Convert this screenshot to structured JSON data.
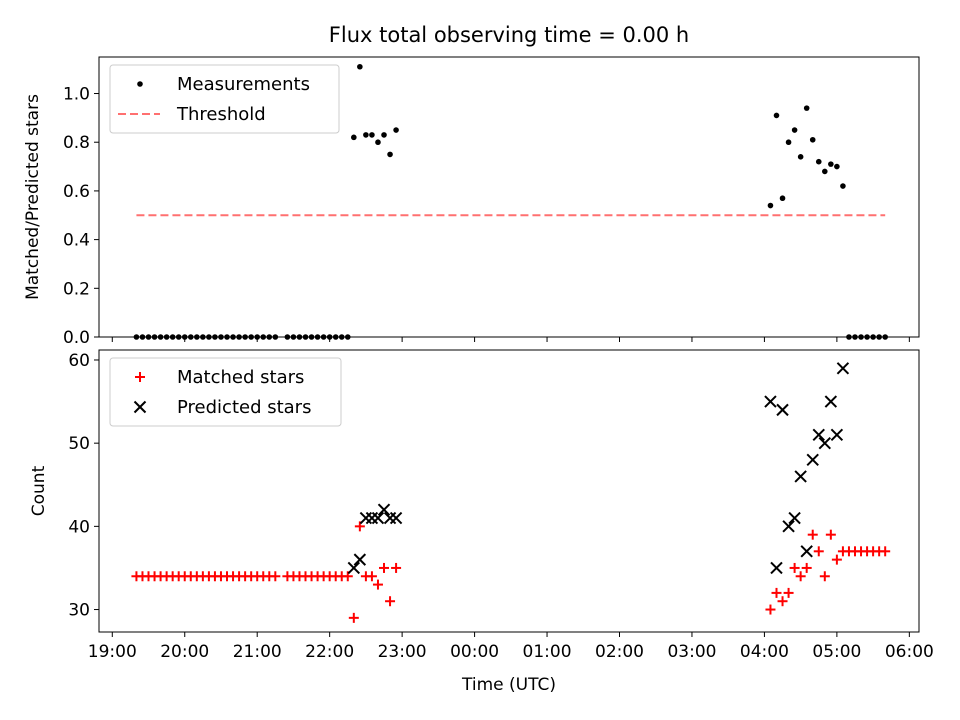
{
  "figure": {
    "title": "Flux total observing time = 0.00 h"
  },
  "chart_data": [
    {
      "type": "scatter",
      "panel": "top",
      "title": "Flux total observing time = 0.00 h",
      "xlabel": "",
      "ylabel": "Matched/Predicted stars",
      "x_ticks": [
        "19:00",
        "20:00",
        "21:00",
        "22:00",
        "23:00",
        "00:00",
        "01:00",
        "02:00",
        "03:00",
        "04:00",
        "05:00",
        "06:00"
      ],
      "ylim": [
        0,
        1.15
      ],
      "y_ticks": [
        "0.0",
        "0.2",
        "0.4",
        "0.6",
        "0.8",
        "1.0"
      ],
      "legend": [
        "Measurements",
        "Threshold"
      ],
      "legend_position": "top-left",
      "colors": {
        "measurements": "#000000",
        "threshold": "#ff7070"
      },
      "series": [
        {
          "name": "Measurements",
          "x": [
            "19:20",
            "19:25",
            "19:30",
            "19:35",
            "19:40",
            "19:45",
            "19:50",
            "19:55",
            "20:00",
            "20:05",
            "20:10",
            "20:15",
            "20:20",
            "20:25",
            "20:30",
            "20:35",
            "20:40",
            "20:45",
            "20:50",
            "20:55",
            "21:00",
            "21:05",
            "21:10",
            "21:15",
            "21:25",
            "21:30",
            "21:35",
            "21:40",
            "21:45",
            "21:50",
            "21:55",
            "22:00",
            "22:05",
            "22:10",
            "22:15",
            "22:20",
            "22:25",
            "22:30",
            "22:35",
            "22:40",
            "22:45",
            "22:50",
            "22:55",
            "04:05",
            "04:10",
            "04:15",
            "04:20",
            "04:25",
            "04:30",
            "04:35",
            "04:40",
            "04:45",
            "04:50",
            "04:55",
            "05:00",
            "05:05",
            "05:10",
            "05:15",
            "05:20",
            "05:25",
            "05:30",
            "05:35",
            "05:40"
          ],
          "y": [
            0,
            0,
            0,
            0,
            0,
            0,
            0,
            0,
            0,
            0,
            0,
            0,
            0,
            0,
            0,
            0,
            0,
            0,
            0,
            0,
            0,
            0,
            0,
            0,
            0,
            0,
            0,
            0,
            0,
            0,
            0,
            0,
            0,
            0,
            0,
            0.82,
            1.11,
            0.83,
            0.83,
            0.8,
            0.83,
            0.75,
            0.85,
            0.54,
            0.91,
            0.57,
            0.8,
            0.85,
            0.74,
            0.94,
            0.81,
            0.72,
            0.68,
            0.71,
            0.7,
            0.62,
            0,
            0,
            0,
            0,
            0,
            0,
            0
          ]
        },
        {
          "name": "Threshold",
          "x": [
            "19:20",
            "05:40"
          ],
          "y": [
            0.5,
            0.5
          ]
        }
      ]
    },
    {
      "type": "scatter",
      "panel": "bottom",
      "xlabel": "Time (UTC)",
      "ylabel": "Count",
      "x_ticks": [
        "19:00",
        "20:00",
        "21:00",
        "22:00",
        "23:00",
        "00:00",
        "01:00",
        "02:00",
        "03:00",
        "04:00",
        "05:00",
        "06:00"
      ],
      "ylim": [
        27.3,
        61.2
      ],
      "y_ticks": [
        "30",
        "40",
        "50",
        "60"
      ],
      "legend": [
        "Matched stars",
        "Predicted stars"
      ],
      "legend_position": "top-left",
      "colors": {
        "matched": "#ff0000",
        "predicted": "#000000"
      },
      "series": [
        {
          "name": "Matched stars",
          "marker": "+",
          "x": [
            "19:20",
            "19:25",
            "19:30",
            "19:35",
            "19:40",
            "19:45",
            "19:50",
            "19:55",
            "20:00",
            "20:05",
            "20:10",
            "20:15",
            "20:20",
            "20:25",
            "20:30",
            "20:35",
            "20:40",
            "20:45",
            "20:50",
            "20:55",
            "21:00",
            "21:05",
            "21:10",
            "21:15",
            "21:25",
            "21:30",
            "21:35",
            "21:40",
            "21:45",
            "21:50",
            "21:55",
            "22:00",
            "22:05",
            "22:10",
            "22:15",
            "22:20",
            "22:25",
            "22:30",
            "22:35",
            "22:40",
            "22:45",
            "22:50",
            "22:55",
            "04:05",
            "04:10",
            "04:15",
            "04:20",
            "04:25",
            "04:30",
            "04:35",
            "04:40",
            "04:45",
            "04:50",
            "04:55",
            "05:00",
            "05:05",
            "05:10",
            "05:15",
            "05:20",
            "05:25",
            "05:30",
            "05:35",
            "05:40"
          ],
          "y": [
            34,
            34,
            34,
            34,
            34,
            34,
            34,
            34,
            34,
            34,
            34,
            34,
            34,
            34,
            34,
            34,
            34,
            34,
            34,
            34,
            34,
            34,
            34,
            34,
            34,
            34,
            34,
            34,
            34,
            34,
            34,
            34,
            34,
            34,
            34,
            29,
            40,
            34,
            34,
            33,
            35,
            31,
            35,
            30,
            32,
            31,
            32,
            35,
            34,
            35,
            39,
            37,
            34,
            39,
            36,
            37,
            37,
            37,
            37,
            37,
            37,
            37,
            37
          ]
        },
        {
          "name": "Predicted stars",
          "marker": "x",
          "x": [
            "22:20",
            "22:25",
            "22:30",
            "22:35",
            "22:40",
            "22:45",
            "22:50",
            "22:55",
            "04:05",
            "04:10",
            "04:15",
            "04:20",
            "04:25",
            "04:30",
            "04:35",
            "04:40",
            "04:45",
            "04:50",
            "04:55",
            "05:00",
            "05:05"
          ],
          "y": [
            35,
            36,
            41,
            41,
            41,
            42,
            41,
            41,
            55,
            35,
            54,
            40,
            41,
            46,
            37,
            48,
            51,
            50,
            55,
            51,
            59
          ]
        }
      ]
    }
  ]
}
